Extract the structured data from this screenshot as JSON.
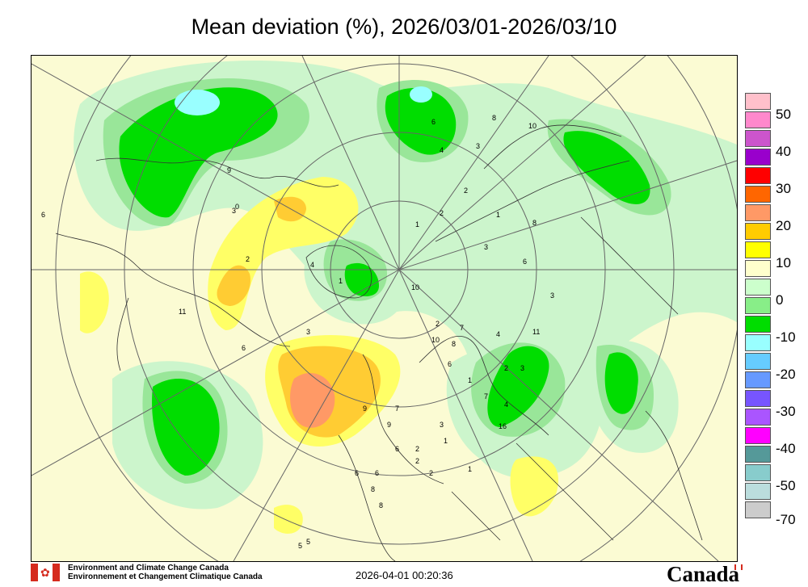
{
  "title": "Mean deviation (%), 2026/03/01-2026/03/10",
  "legend": {
    "labels": [
      "50",
      "40",
      "30",
      "20",
      "10",
      "0",
      "-10",
      "-20",
      "-30",
      "-40",
      "-50",
      "-70"
    ],
    "colors": [
      "#ffc0cb",
      "#ff88cc",
      "#cc55cc",
      "#9900cc",
      "#ff0000",
      "#ff6600",
      "#ff9966",
      "#ffcc00",
      "#ffff00",
      "#ffffcc",
      "#ccffcc",
      "#88ee88",
      "#00dd00",
      "#99ffff",
      "#66ccff",
      "#6699ff",
      "#7755ff",
      "#aa55ff",
      "#ff00ff",
      "#559999",
      "#88cccc",
      "#bbdddd",
      "#cccccc"
    ]
  },
  "map": {
    "point_labels": [
      "6",
      "9",
      "3",
      "11",
      "6",
      "3",
      "4",
      "2",
      "1",
      "0",
      "6",
      "4",
      "3",
      "2",
      "8",
      "10",
      "10",
      "1",
      "2",
      "1",
      "3",
      "8",
      "6",
      "3",
      "4",
      "16",
      "1",
      "7",
      "3",
      "2",
      "1",
      "3",
      "6",
      "2",
      "2",
      "1",
      "6",
      "8",
      "8",
      "9",
      "7",
      "2",
      "6",
      "10",
      "8",
      "7",
      "6",
      "9",
      "2",
      "4",
      "5",
      "11",
      "5"
    ]
  },
  "footer": {
    "org_en": "Environment and Climate Change Canada",
    "org_fr": "Environnement et Changement Climatique Canada",
    "timestamp": "2026-04-01 00:20:36",
    "wordmark": "Canada"
  }
}
